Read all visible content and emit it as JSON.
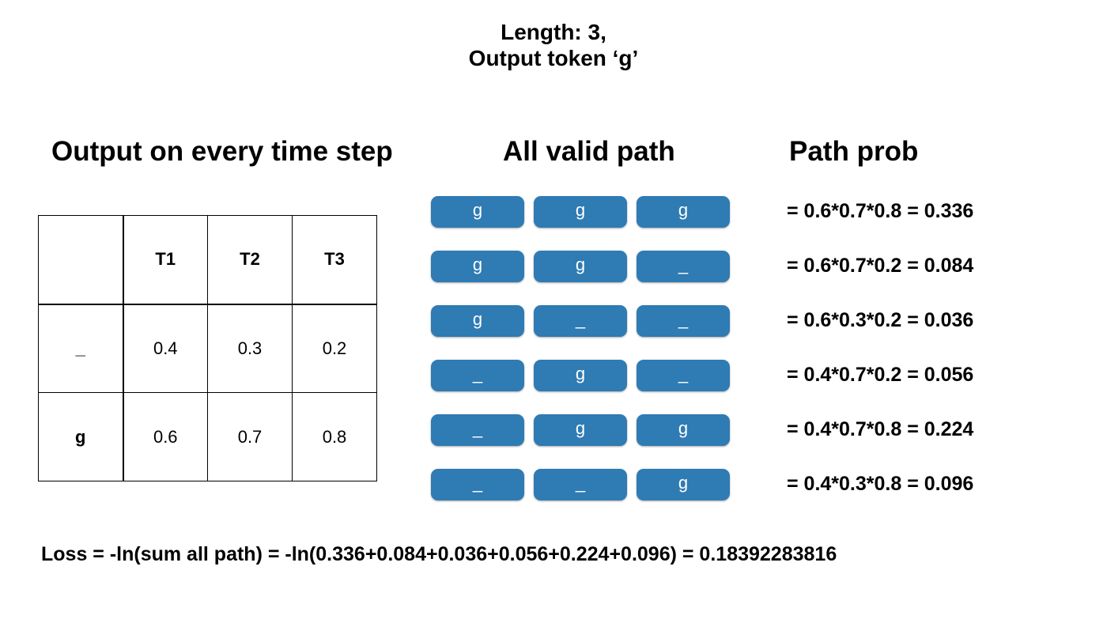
{
  "title": {
    "line1": "Length: 3,",
    "line2": "Output token ‘g’"
  },
  "headings": {
    "output": "Output on every time step",
    "paths": "All valid path",
    "prob": "Path prob"
  },
  "table": {
    "columns": [
      "",
      "T1",
      "T2",
      "T3"
    ],
    "rows": [
      {
        "label": "_",
        "values": [
          "0.4",
          "0.3",
          "0.2"
        ]
      },
      {
        "label": "g",
        "values": [
          "0.6",
          "0.7",
          "0.8"
        ]
      }
    ]
  },
  "paths": [
    {
      "tokens": [
        "g",
        "g",
        "g"
      ],
      "prob": "= 0.6*0.7*0.8 = 0.336"
    },
    {
      "tokens": [
        "g",
        "g",
        "_"
      ],
      "prob": "= 0.6*0.7*0.2 = 0.084"
    },
    {
      "tokens": [
        "g",
        "_",
        "_"
      ],
      "prob": "= 0.6*0.3*0.2 = 0.036"
    },
    {
      "tokens": [
        "_",
        "g",
        "_"
      ],
      "prob": "= 0.4*0.7*0.2 = 0.056"
    },
    {
      "tokens": [
        "_",
        "g",
        "g"
      ],
      "prob": "= 0.4*0.7*0.8 = 0.224"
    },
    {
      "tokens": [
        "_",
        "_",
        "g"
      ],
      "prob": "= 0.4*0.3*0.8 = 0.096"
    }
  ],
  "loss": "Loss = -ln(sum all path) = -ln(0.336+0.084+0.036+0.056+0.224+0.096) = 0.18392283816",
  "colors": {
    "token_fill": "#2f7bb3",
    "token_text": "#ffffff"
  }
}
